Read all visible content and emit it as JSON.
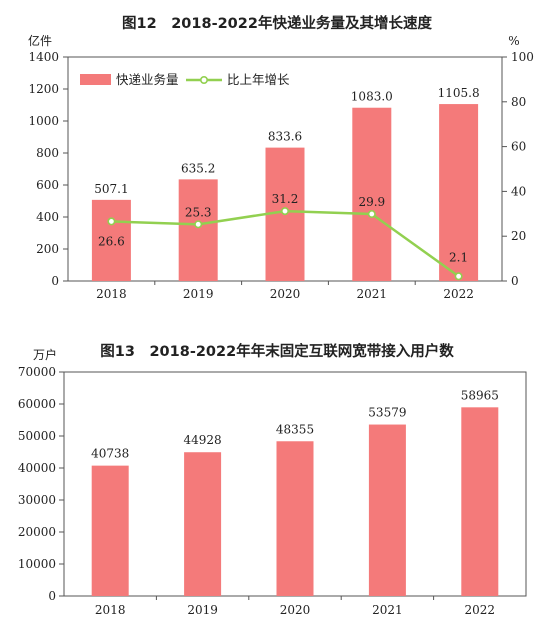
{
  "chart_data": [
    {
      "type": "bar+line",
      "title": "图12　2018-2022年快递业务量及其增长速度",
      "ylabel_left": "亿件",
      "ylabel_right": "%",
      "categories": [
        "2018",
        "2019",
        "2020",
        "2021",
        "2022"
      ],
      "ylim_left": [
        0,
        1400
      ],
      "yticks_left": [
        0,
        200,
        400,
        600,
        800,
        1000,
        1200,
        1400
      ],
      "ylim_right": [
        0,
        100
      ],
      "yticks_right": [
        0,
        20,
        40,
        60,
        80,
        100
      ],
      "grid": false,
      "legend_position": "top-left",
      "series": [
        {
          "name": "快递业务量",
          "type": "bar",
          "axis": "left",
          "color": "#f47a7a",
          "values": [
            507.1,
            635.2,
            833.6,
            1083.0,
            1105.8
          ],
          "labels": [
            "507.1",
            "635.2",
            "833.6",
            "1083.0",
            "1105.8"
          ]
        },
        {
          "name": "比上年增长",
          "type": "line",
          "axis": "right",
          "color": "#92d050",
          "values": [
            26.6,
            25.3,
            31.2,
            29.9,
            2.1
          ],
          "labels": [
            "26.6",
            "25.3",
            "31.2",
            "29.9",
            "2.1"
          ]
        }
      ]
    },
    {
      "type": "bar",
      "title": "图13　2018-2022年年末固定互联网宽带接入用户数",
      "ylabel": "万户",
      "categories": [
        "2018",
        "2019",
        "2020",
        "2021",
        "2022"
      ],
      "ylim": [
        0,
        70000
      ],
      "yticks": [
        0,
        10000,
        20000,
        30000,
        40000,
        50000,
        60000,
        70000
      ],
      "grid": false,
      "color": "#f47a7a",
      "values": [
        40738,
        44928,
        48355,
        53579,
        58965
      ],
      "labels": [
        "40738",
        "44928",
        "48355",
        "53579",
        "58965"
      ]
    }
  ]
}
